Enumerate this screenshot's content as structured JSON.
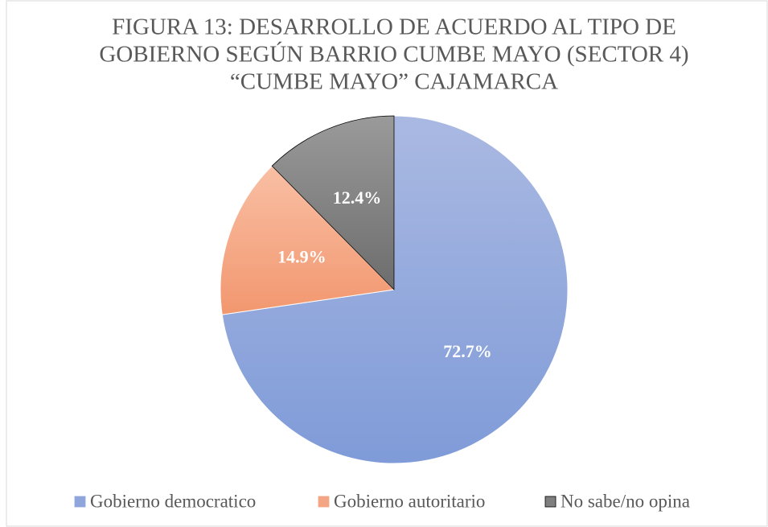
{
  "chart_data": {
    "type": "pie",
    "title": [
      "FIGURA 13: DESARROLLO DE ACUERDO AL TIPO DE",
      "GOBIERNO SEGÚN BARRIO CUMBE MAYO (SECTOR 4)",
      "“CUMBE MAYO” CAJAMARCA"
    ],
    "categories": [
      "Gobierno democratico",
      "Gobierno autoritario",
      "No sabe/no opina"
    ],
    "values": [
      72.7,
      14.9,
      12.4
    ],
    "value_labels": [
      "72.7%",
      "14.9%",
      "12.4%"
    ],
    "colors": [
      "#8ea6dc",
      "#f4a583",
      "#7f7f7f"
    ],
    "legend": "bottom"
  }
}
